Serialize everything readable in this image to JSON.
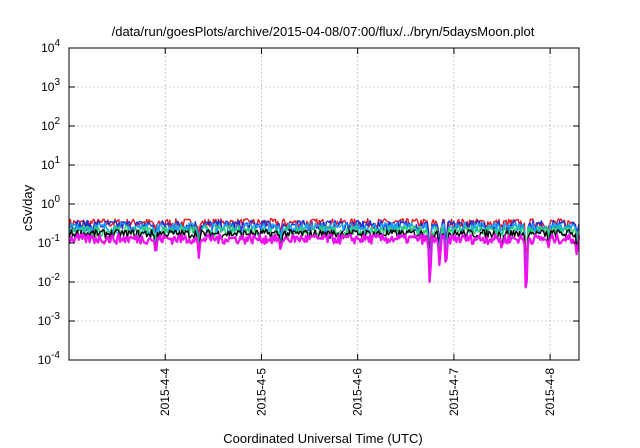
{
  "chart_data": {
    "type": "line",
    "title": "/data/run/goesPlots/archive/2015-04-08/07:00/flux/../bryn/5daysMoon.plot",
    "xlabel": "Coordinated Universal Time (UTC)",
    "ylabel": "cSv/day",
    "y_scale": "log",
    "ylim": [
      0.0001,
      10000
    ],
    "y_ticks": [
      {
        "value": 0.0001,
        "exponent": "-4"
      },
      {
        "value": 0.001,
        "exponent": "-3"
      },
      {
        "value": 0.01,
        "exponent": "-2"
      },
      {
        "value": 0.1,
        "exponent": "-1"
      },
      {
        "value": 1,
        "exponent": "0"
      },
      {
        "value": 10,
        "exponent": "1"
      },
      {
        "value": 100,
        "exponent": "2"
      },
      {
        "value": 1000,
        "exponent": "3"
      },
      {
        "value": 10000,
        "exponent": "4"
      }
    ],
    "y_tick_base": "10",
    "x_range_days": [
      3.0,
      8.3
    ],
    "x_ticks": [
      {
        "label": "2015-4-4",
        "day": 4
      },
      {
        "label": "2015-4-5",
        "day": 5
      },
      {
        "label": "2015-4-6",
        "day": 6
      },
      {
        "label": "2015-4-7",
        "day": 7
      },
      {
        "label": "2015-4-8",
        "day": 8
      }
    ],
    "grid": true,
    "series": [
      {
        "color": "#e8141f",
        "level": 0.33,
        "spread": 0.1
      },
      {
        "color": "#1a2fd8",
        "level": 0.29,
        "spread": 0.1
      },
      {
        "color": "#1aa3ff",
        "level": 0.25,
        "spread": 0.09
      },
      {
        "color": "#22d070",
        "level": 0.21,
        "spread": 0.07
      },
      {
        "color": "#000000",
        "level": 0.175,
        "spread": 0.05
      },
      {
        "color": "#ee10ee",
        "level": 0.13,
        "spread": 0.04
      }
    ],
    "dips": [
      {
        "day": 3.9,
        "value": 0.045
      },
      {
        "day": 4.35,
        "value": 0.04
      },
      {
        "day": 5.2,
        "value": 0.05
      },
      {
        "day": 6.75,
        "value": 0.0065
      },
      {
        "day": 6.85,
        "value": 0.02
      },
      {
        "day": 6.92,
        "value": 0.02
      },
      {
        "day": 7.5,
        "value": 0.07
      },
      {
        "day": 7.75,
        "value": 0.0025
      },
      {
        "day": 7.98,
        "value": 0.07
      },
      {
        "day": 8.28,
        "value": 0.045
      }
    ]
  }
}
